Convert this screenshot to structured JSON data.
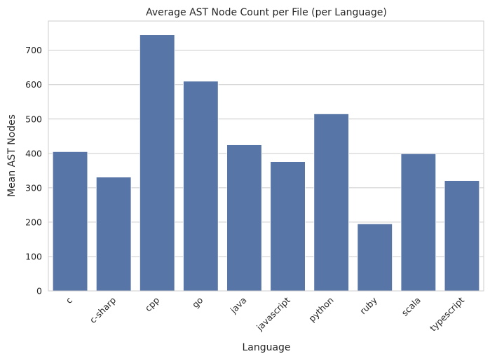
{
  "chart_data": {
    "type": "bar",
    "title": "Average AST Node Count per File (per Language)",
    "xlabel": "Language",
    "ylabel": "Mean AST Nodes",
    "categories": [
      "c",
      "c-sharp",
      "cpp",
      "go",
      "java",
      "javascript",
      "python",
      "ruby",
      "scala",
      "typescript"
    ],
    "values": [
      405,
      331,
      745,
      610,
      425,
      376,
      515,
      195,
      399,
      321
    ],
    "ylim": [
      0,
      785
    ],
    "yticks": [
      0,
      100,
      200,
      300,
      400,
      500,
      600,
      700
    ],
    "grid": true,
    "grid_axis": "y",
    "bar_color": "#5875a7",
    "tick_label_rotation": 45
  }
}
